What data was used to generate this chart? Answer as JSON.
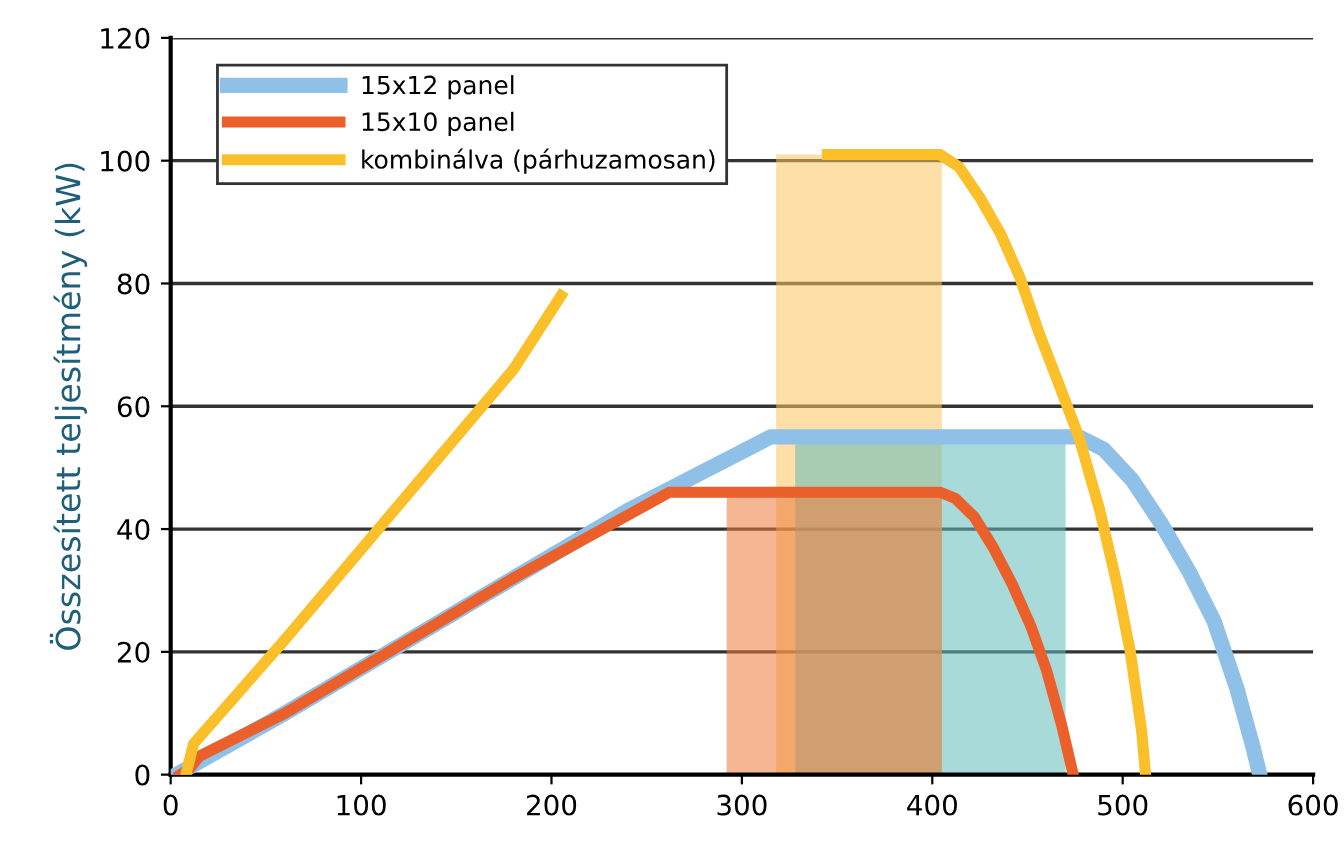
{
  "chart_data": {
    "type": "line",
    "ylabel": "Összesített teljesítmény (kW)",
    "xlim": [
      0,
      600
    ],
    "xticks": [
      0,
      100,
      200,
      300,
      400,
      500,
      600
    ],
    "ylim": [
      0,
      120
    ],
    "yticks": [
      0,
      20,
      40,
      60,
      80,
      100,
      120
    ],
    "grid": "y",
    "legend": "top left",
    "marker": "none",
    "line_style": "solid",
    "series": [
      {
        "type": "area",
        "color": "#fcc55e",
        "x": [
          318,
          405
        ],
        "values": [
          101,
          101
        ]
      },
      {
        "type": "area",
        "color": "#62bcbc",
        "x": [
          328,
          470
        ],
        "values": [
          54,
          54
        ]
      },
      {
        "type": "area",
        "color": "#ee7a3a",
        "x": [
          292,
          405
        ],
        "values": [
          46,
          46
        ]
      },
      {
        "name": "15x12 panel",
        "color": "#8fc1e8",
        "x": [
          3,
          60,
          120,
          180,
          240,
          315,
          477,
          490,
          505,
          520,
          535,
          548,
          560,
          568,
          572
        ],
        "values": [
          0,
          10,
          21,
          32,
          43,
          55,
          55,
          53,
          48,
          41,
          33,
          25,
          14,
          5,
          0
        ]
      },
      {
        "name": "15x10 panel",
        "color": "#eb5f2a",
        "x": [
          5,
          10,
          15,
          60,
          120,
          180,
          262,
          404,
          412,
          422,
          432,
          442,
          452,
          460,
          468,
          474
        ],
        "values": [
          0,
          1,
          3,
          10,
          21,
          32,
          46,
          46,
          45,
          42,
          37,
          31,
          24,
          17,
          8,
          0
        ]
      },
      {
        "name": "kombinálva (párhuzamosan)",
        "color": "#fbbf2a",
        "x": [
          8,
          12,
          60,
          120,
          180,
          205,
          241,
          345,
          404,
          414,
          425,
          436,
          446,
          456,
          466,
          477,
          488,
          497,
          504,
          510,
          512
        ],
        "values": [
          0,
          5,
          22,
          44,
          66,
          78,
          null,
          101,
          101,
          99,
          94,
          88,
          81,
          72,
          64,
          55,
          43,
          31,
          20,
          7,
          0
        ]
      }
    ]
  }
}
